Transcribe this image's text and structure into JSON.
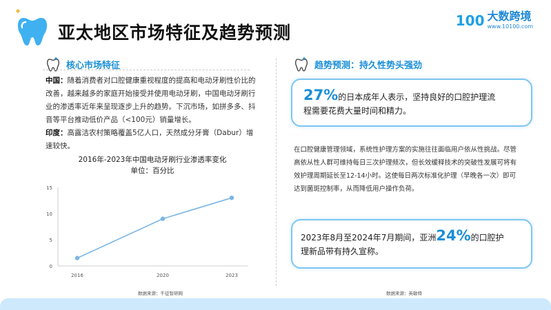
{
  "header": {
    "title": "亚太地区市场特征及趋势预测",
    "logo_mark": "100",
    "logo_name": "大数跨境",
    "logo_url": "www.10100.com"
  },
  "left": {
    "heading": "核心市场特征",
    "china_label": "中国：",
    "china_text": "随着消费者对口腔健康重视程度的提高和电动牙刷性价比的改善，越来越多的家庭开始接受并使用电动牙刷，中国电动牙刷行业的渗透率近年来呈现逐步上升的趋势。下沉市场，如拼多多、抖音等平台推动低价产品（<100元）销量增长。",
    "india_label": "印度：",
    "india_text": "高露洁农村策略覆盖5亿人口，天然成分牙膏（Dabur）增速较快。",
    "source": "数据来源：千征智研网"
  },
  "chart_data": {
    "type": "line",
    "title": "2016年-2023年中国电动牙刷行业渗透率变化",
    "subtitle": "单位：百分比",
    "x": [
      "2016",
      "2020",
      "2023"
    ],
    "series": [
      {
        "values": [
          1.5,
          9,
          13
        ]
      }
    ],
    "yticks": [
      "0",
      "5",
      "10",
      "15"
    ],
    "ylim": [
      0,
      15
    ],
    "grid": false,
    "color": "#7ab6e6"
  },
  "right": {
    "heading": "趋势预测：持久性势头强劲",
    "card1_big": "27%",
    "card1_text_a": "的日本成年人表示，坚持良好的口腔护理流",
    "card1_text_b": "程需要花费大量时间和精力。",
    "mid_text": "在口腔健康管理领域，系统性护理方案的实施往往面临用户依从性挑战。尽管高依从性人群可维持每日三次护理频次，但长效缓释技术的突破性发展可将有效护理周期延长至12-14小时。这使每日两次标准化护理（早晚各一次）即可达到菌斑控制率，从而降低用户操作负荷。",
    "card2_pre": "2023年8月至2024年7月期间，亚洲",
    "card2_big": "24%",
    "card2_post": "的口腔护",
    "card2_line2": "理新品带有持久宣称。",
    "source": "数据来源：英敏特"
  }
}
